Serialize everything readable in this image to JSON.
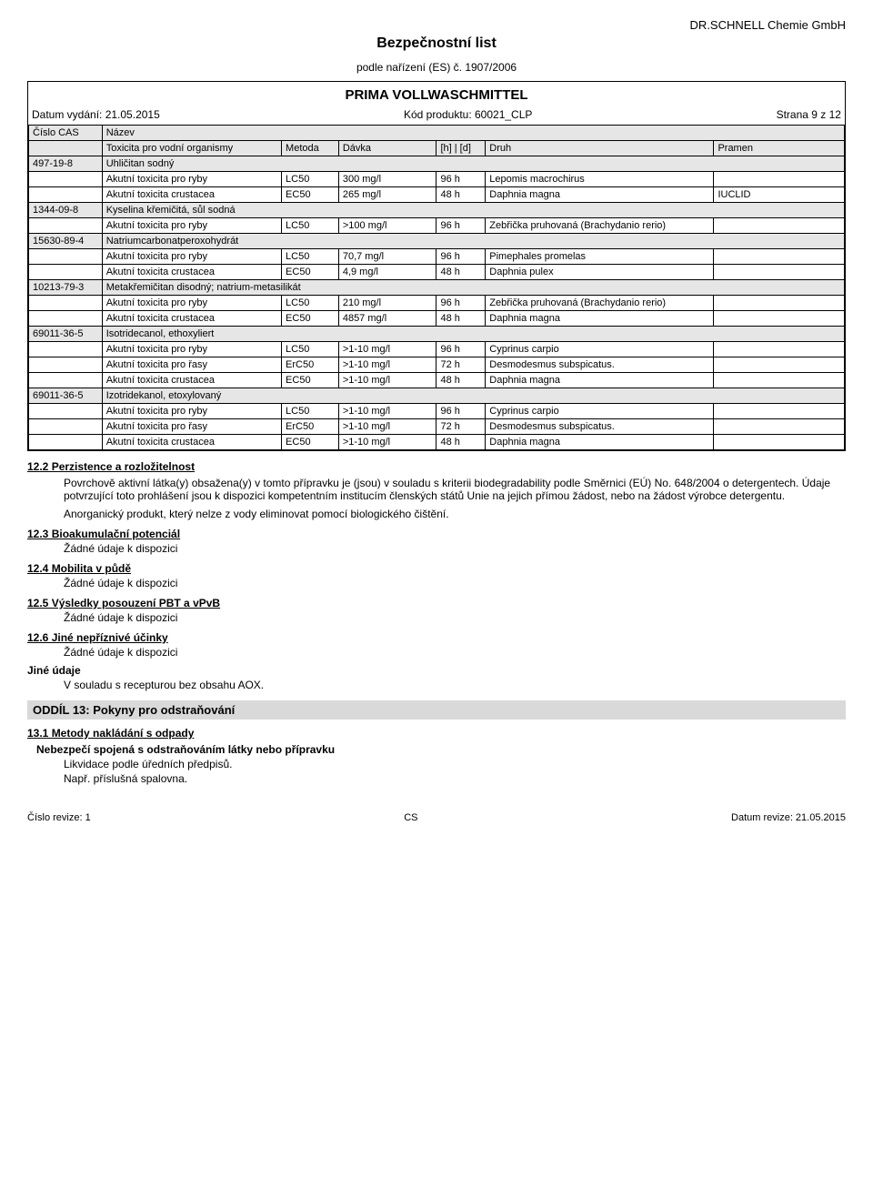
{
  "header": {
    "company": "DR.SCHNELL Chemie GmbH",
    "doc_title": "Bezpečnostní list",
    "subtitle": "podle nařízení (ES) č. 1907/2006",
    "product": "PRIMA VOLLWASCHMITTEL",
    "date_issue_label": "Datum vydání: 21.05.2015",
    "code_label": "Kód produktu: 60021_CLP",
    "page_label": "Strana 9 z 12"
  },
  "thead": {
    "cas": "Číslo CAS",
    "name": "Název",
    "tox": "Toxicita pro vodní organismy",
    "method": "Metoda",
    "dose": "Dávka",
    "time": "[h] | [d]",
    "species": "Druh",
    "source": "Pramen"
  },
  "substances": [
    {
      "cas": "497-19-8",
      "name": "Uhličitan sodný",
      "rows": [
        {
          "tox": "Akutní toxicita pro ryby",
          "method": "LC50",
          "dose": "300 mg/l",
          "time": "96 h",
          "species": "Lepomis macrochirus",
          "source": ""
        },
        {
          "tox": "Akutní toxicita crustacea",
          "method": "EC50",
          "dose": "265 mg/l",
          "time": "48 h",
          "species": "Daphnia magna",
          "source": "IUCLID"
        }
      ]
    },
    {
      "cas": "1344-09-8",
      "name": "Kyselina křemičitá, sůl sodná",
      "rows": [
        {
          "tox": "Akutní toxicita pro ryby",
          "method": "LC50",
          "dose": ">100 mg/l",
          "time": "96 h",
          "species": "Zebřička pruhovaná (Brachydanio rerio)",
          "source": ""
        }
      ]
    },
    {
      "cas": "15630-89-4",
      "name": "Natriumcarbonatperoxohydrát",
      "rows": [
        {
          "tox": "Akutní toxicita pro ryby",
          "method": "LC50",
          "dose": "70,7 mg/l",
          "time": "96 h",
          "species": "Pimephales promelas",
          "source": ""
        },
        {
          "tox": "Akutní toxicita crustacea",
          "method": "EC50",
          "dose": "4,9 mg/l",
          "time": "48 h",
          "species": "Daphnia pulex",
          "source": ""
        }
      ]
    },
    {
      "cas": "10213-79-3",
      "name": "Metakřemičitan disodný; natrium-metasilikát",
      "rows": [
        {
          "tox": "Akutní toxicita pro ryby",
          "method": "LC50",
          "dose": "210 mg/l",
          "time": "96 h",
          "species": "Zebřička pruhovaná (Brachydanio rerio)",
          "source": ""
        },
        {
          "tox": "Akutní toxicita crustacea",
          "method": "EC50",
          "dose": "4857 mg/l",
          "time": "48 h",
          "species": "Daphnia magna",
          "source": ""
        }
      ]
    },
    {
      "cas": "69011-36-5",
      "name": "Isotridecanol, ethoxyliert",
      "rows": [
        {
          "tox": "Akutní toxicita pro ryby",
          "method": "LC50",
          "dose": ">1-10 mg/l",
          "time": "96 h",
          "species": "Cyprinus carpio",
          "source": ""
        },
        {
          "tox": "Akutní toxicita pro řasy",
          "method": "ErC50",
          "dose": ">1-10 mg/l",
          "time": "72 h",
          "species": "Desmodesmus subspicatus.",
          "source": ""
        },
        {
          "tox": "Akutní toxicita crustacea",
          "method": "EC50",
          "dose": ">1-10 mg/l",
          "time": "48 h",
          "species": "Daphnia magna",
          "source": ""
        }
      ]
    },
    {
      "cas": "69011-36-5",
      "name": "Izotridekanol, etoxylovaný",
      "rows": [
        {
          "tox": "Akutní toxicita pro ryby",
          "method": "LC50",
          "dose": ">1-10 mg/l",
          "time": "96 h",
          "species": "Cyprinus carpio",
          "source": ""
        },
        {
          "tox": "Akutní toxicita pro řasy",
          "method": "ErC50",
          "dose": ">1-10 mg/l",
          "time": "72 h",
          "species": "Desmodesmus subspicatus.",
          "source": ""
        },
        {
          "tox": "Akutní toxicita crustacea",
          "method": "EC50",
          "dose": ">1-10 mg/l",
          "time": "48 h",
          "species": "Daphnia magna",
          "source": ""
        }
      ]
    }
  ],
  "sections": {
    "s12_2": {
      "heading": "12.2 Perzistence a rozložitelnost",
      "p1": "Povrchově aktivní látka(y) obsažena(y) v tomto přípravku je (jsou) v souladu s kriterii biodegradability podle Směrnici (EÚ) No. 648/2004 o detergentech. Údaje potvrzující toto prohlášení jsou k dispozici kompetentním institucím členských států Unie na jejich přímou žádost, nebo na žádost výrobce detergentu.",
      "p2": "Anorganický produkt, který nelze z vody eliminovat pomocí biologického čištění."
    },
    "s12_3": {
      "heading": "12.3 Bioakumulační potenciál",
      "text": "Žádné údaje k dispozici"
    },
    "s12_4": {
      "heading": "12.4 Mobilita v půdě",
      "text": "Žádné údaje k dispozici"
    },
    "s12_5": {
      "heading": "12.5 Výsledky posouzení PBT a vPvB",
      "text": "Žádné údaje k dispozici"
    },
    "s12_6": {
      "heading": "12.6 Jiné nepříznivé účinky",
      "text": "Žádné údaje k dispozici"
    },
    "jine": {
      "heading": "Jiné údaje",
      "text": "V souladu s recepturou bez obsahu AOX."
    },
    "oddil13": {
      "bar": "ODDÍL 13: Pokyny pro odstraňování"
    },
    "s13_1": {
      "heading": "13.1 Metody nakládání s odpady",
      "sub": "Nebezpečí spojená s odstraňováním látky nebo přípravku",
      "p1": "Likvidace podle úředních předpisů.",
      "p2": "Např. příslušná spalovna."
    }
  },
  "footer": {
    "left": "Číslo revize: 1",
    "center": "CS",
    "right": "Datum revize: 21.05.2015"
  }
}
